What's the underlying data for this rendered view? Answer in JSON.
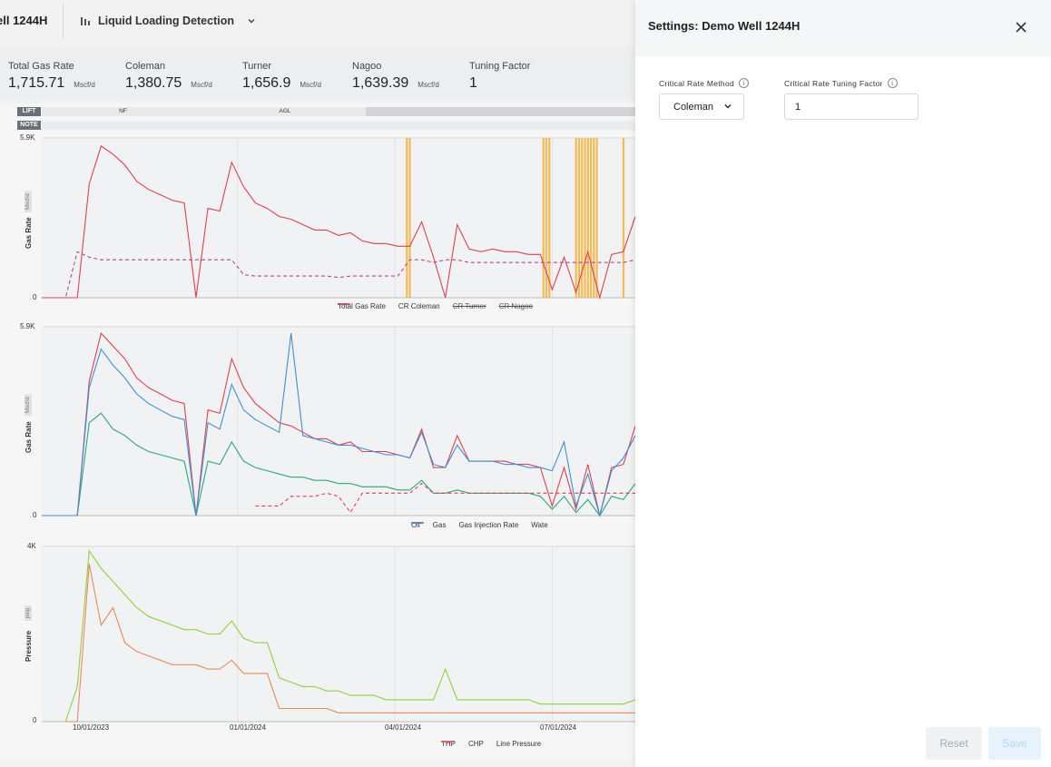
{
  "header": {
    "well_name": "ell 1244H",
    "view_name": "Liquid Loading Detection",
    "view_icon": "bar-chart-icon"
  },
  "metrics": [
    {
      "label": "Total Gas Rate",
      "value": "1,715.71",
      "unit": "Mscf/d"
    },
    {
      "label": "Coleman",
      "value": "1,380.75",
      "unit": "Mscf/d"
    },
    {
      "label": "Turner",
      "value": "1,656.9",
      "unit": "Mscf/d"
    },
    {
      "label": "Nagoo",
      "value": "1,639.39",
      "unit": "Mscf/d"
    },
    {
      "label": "Tuning Factor",
      "value": "1",
      "unit": ""
    }
  ],
  "tracks": {
    "lift_label": "LIFT",
    "note_label": "NOTE",
    "lift_segments": [
      "NF",
      "AGL"
    ]
  },
  "x_ticks": [
    "10/01/2023",
    "01/01/2024",
    "04/01/2024",
    "07/01/2024"
  ],
  "colors": {
    "total_gas": "#e0404f",
    "coleman": "#b4468f",
    "turner": "#6b6f76",
    "nagoo": "#b4468f",
    "oil": "#2aa87a",
    "gas": "#e0404f",
    "gas_injection": "#e0404f",
    "water": "#3d8fd6",
    "thp": "#e8895a",
    "chp": "#8fd13a",
    "line_pressure": "#e0506f",
    "loading_band": "#f2b23a"
  },
  "chart_data": [
    {
      "type": "line",
      "ylabel": "Gas Rate",
      "yunit": "Mscf/d",
      "y_ticks": [
        "5.9K",
        "0"
      ],
      "ylim": [
        0,
        5900
      ],
      "legend": [
        {
          "name": "Total Gas Rate",
          "style": "solid",
          "active": true
        },
        {
          "name": "CR Coleman",
          "style": "dashed",
          "active": true
        },
        {
          "name": "CR Turner",
          "style": "dashed",
          "active": false
        },
        {
          "name": "CR Nagoo",
          "style": "dashed",
          "active": false
        }
      ],
      "series": [
        {
          "name": "Total Gas Rate",
          "values": [
            0,
            0,
            0,
            0,
            4200,
            5600,
            5300,
            4900,
            4300,
            4000,
            3800,
            3600,
            3500,
            0,
            3300,
            3200,
            5000,
            4100,
            3500,
            3300,
            3000,
            2900,
            2700,
            2500,
            2500,
            2300,
            2400,
            2100,
            2000,
            2000,
            1900,
            1900,
            2800,
            1500,
            0,
            2700,
            1800,
            1700,
            1800,
            1700,
            1700,
            1600,
            1600,
            300,
            1500,
            200,
            1700,
            0,
            1600,
            1700,
            3000
          ]
        },
        {
          "name": "CR Coleman",
          "values": [
            0,
            0,
            0,
            1700,
            1500,
            1400,
            1400,
            1400,
            1400,
            1400,
            1400,
            1400,
            1400,
            1400,
            1400,
            1400,
            1400,
            850,
            800,
            800,
            800,
            800,
            800,
            800,
            800,
            750,
            800,
            800,
            800,
            800,
            800,
            1400,
            1400,
            1300,
            1400,
            1400,
            1300,
            1300,
            1300,
            1300,
            1300,
            1300,
            1300,
            1300,
            1300,
            1300,
            1300,
            1300,
            1300,
            1300,
            1400
          ]
        }
      ],
      "loading_events_pct": [
        0.615,
        0.62,
        0.845,
        0.85,
        0.855,
        0.9,
        0.905,
        0.91,
        0.915,
        0.92,
        0.925,
        0.93,
        0.935,
        0.98
      ]
    },
    {
      "type": "line",
      "ylabel": "Gas Rate",
      "yunit": "Mscf/d",
      "y_ticks": [
        "5.9K",
        "0"
      ],
      "ylim": [
        0,
        5900
      ],
      "legend": [
        {
          "name": "Oil",
          "style": "solid",
          "active": true
        },
        {
          "name": "Gas",
          "style": "solid",
          "active": true
        },
        {
          "name": "Gas Injection Rate",
          "style": "dashed",
          "active": true
        },
        {
          "name": "Wate",
          "style": "solid",
          "active": true
        }
      ],
      "series": [
        {
          "name": "Oil",
          "values": [
            0,
            0,
            0,
            0,
            2900,
            3200,
            2700,
            2500,
            2200,
            2000,
            1900,
            1800,
            1700,
            0,
            1700,
            1600,
            2300,
            1700,
            1500,
            1400,
            1300,
            1200,
            1200,
            1100,
            1100,
            1000,
            1000,
            900,
            900,
            900,
            800,
            800,
            1100,
            700,
            700,
            800,
            700,
            700,
            700,
            700,
            700,
            700,
            600,
            200,
            600,
            100,
            500,
            0,
            600,
            500,
            1000
          ]
        },
        {
          "name": "Gas",
          "values": [
            0,
            0,
            0,
            0,
            4200,
            5700,
            5300,
            4900,
            4300,
            4000,
            3800,
            3600,
            3500,
            0,
            3300,
            3200,
            4900,
            4000,
            3500,
            3200,
            2900,
            2800,
            2600,
            2400,
            2400,
            2200,
            2300,
            2000,
            2000,
            2000,
            1900,
            1800,
            2700,
            1500,
            1500,
            2500,
            1700,
            1700,
            1700,
            1700,
            1600,
            1600,
            1500,
            300,
            1500,
            200,
            1600,
            0,
            1500,
            1600,
            2800
          ]
        },
        {
          "name": "Gas Injection Rate",
          "values": [
            null,
            null,
            null,
            null,
            null,
            null,
            null,
            null,
            null,
            null,
            null,
            null,
            null,
            null,
            null,
            null,
            null,
            null,
            300,
            300,
            300,
            600,
            600,
            600,
            700,
            600,
            100,
            700,
            700,
            700,
            700,
            700,
            1000,
            700,
            700,
            700,
            700,
            700,
            700,
            700,
            700,
            700,
            700,
            700,
            700,
            700,
            700,
            700,
            700,
            700,
            700
          ]
        },
        {
          "name": "Wate",
          "values": [
            0,
            0,
            0,
            0,
            4000,
            5200,
            4700,
            4300,
            3800,
            3500,
            3300,
            3100,
            3000,
            0,
            2900,
            2700,
            4100,
            3300,
            3000,
            2800,
            2600,
            5700,
            2500,
            2400,
            2300,
            2200,
            2200,
            2100,
            2000,
            1900,
            1900,
            1800,
            2600,
            1600,
            1500,
            2200,
            1700,
            1700,
            1700,
            1600,
            1600,
            1500,
            1500,
            1400,
            2300,
            300,
            1300,
            0,
            1400,
            1800,
            2500
          ]
        }
      ]
    },
    {
      "type": "line",
      "ylabel": "Pressure",
      "yunit": "psig",
      "y_ticks": [
        "4K",
        "0"
      ],
      "ylim": [
        0,
        4000
      ],
      "legend": [
        {
          "name": "THP",
          "style": "solid",
          "active": true
        },
        {
          "name": "CHP",
          "style": "solid",
          "active": true
        },
        {
          "name": "Line Pressure",
          "style": "solid",
          "active": true
        }
      ],
      "series": [
        {
          "name": "THP",
          "values": [
            null,
            null,
            0,
            0,
            3600,
            2200,
            2600,
            1800,
            1600,
            1500,
            1400,
            1300,
            1300,
            1300,
            1200,
            1200,
            1400,
            1100,
            1100,
            1100,
            300,
            300,
            300,
            300,
            300,
            200,
            200,
            200,
            200,
            200,
            200,
            200,
            200,
            200,
            200,
            200,
            200,
            200,
            200,
            200,
            200,
            200,
            200,
            200,
            200,
            200,
            200,
            200,
            200,
            200,
            200
          ]
        },
        {
          "name": "CHP",
          "values": [
            null,
            null,
            0,
            800,
            3900,
            3500,
            3200,
            2900,
            2600,
            2400,
            2300,
            2200,
            2100,
            2100,
            2000,
            2000,
            2300,
            1900,
            1800,
            1800,
            1000,
            900,
            800,
            800,
            700,
            700,
            600,
            600,
            600,
            500,
            500,
            500,
            500,
            500,
            1200,
            500,
            500,
            500,
            500,
            500,
            500,
            500,
            400,
            400,
            400,
            400,
            400,
            400,
            400,
            400,
            500
          ]
        },
        {
          "name": "Line Pressure",
          "values": []
        }
      ]
    }
  ],
  "settings": {
    "title": "Settings: Demo Well 1244H",
    "method_label": "Critical Rate Method",
    "method_value": "Coleman",
    "tuning_label": "Critical Rate Tuning Factor",
    "tuning_value": "1",
    "reset_label": "Reset",
    "save_label": "Save"
  }
}
